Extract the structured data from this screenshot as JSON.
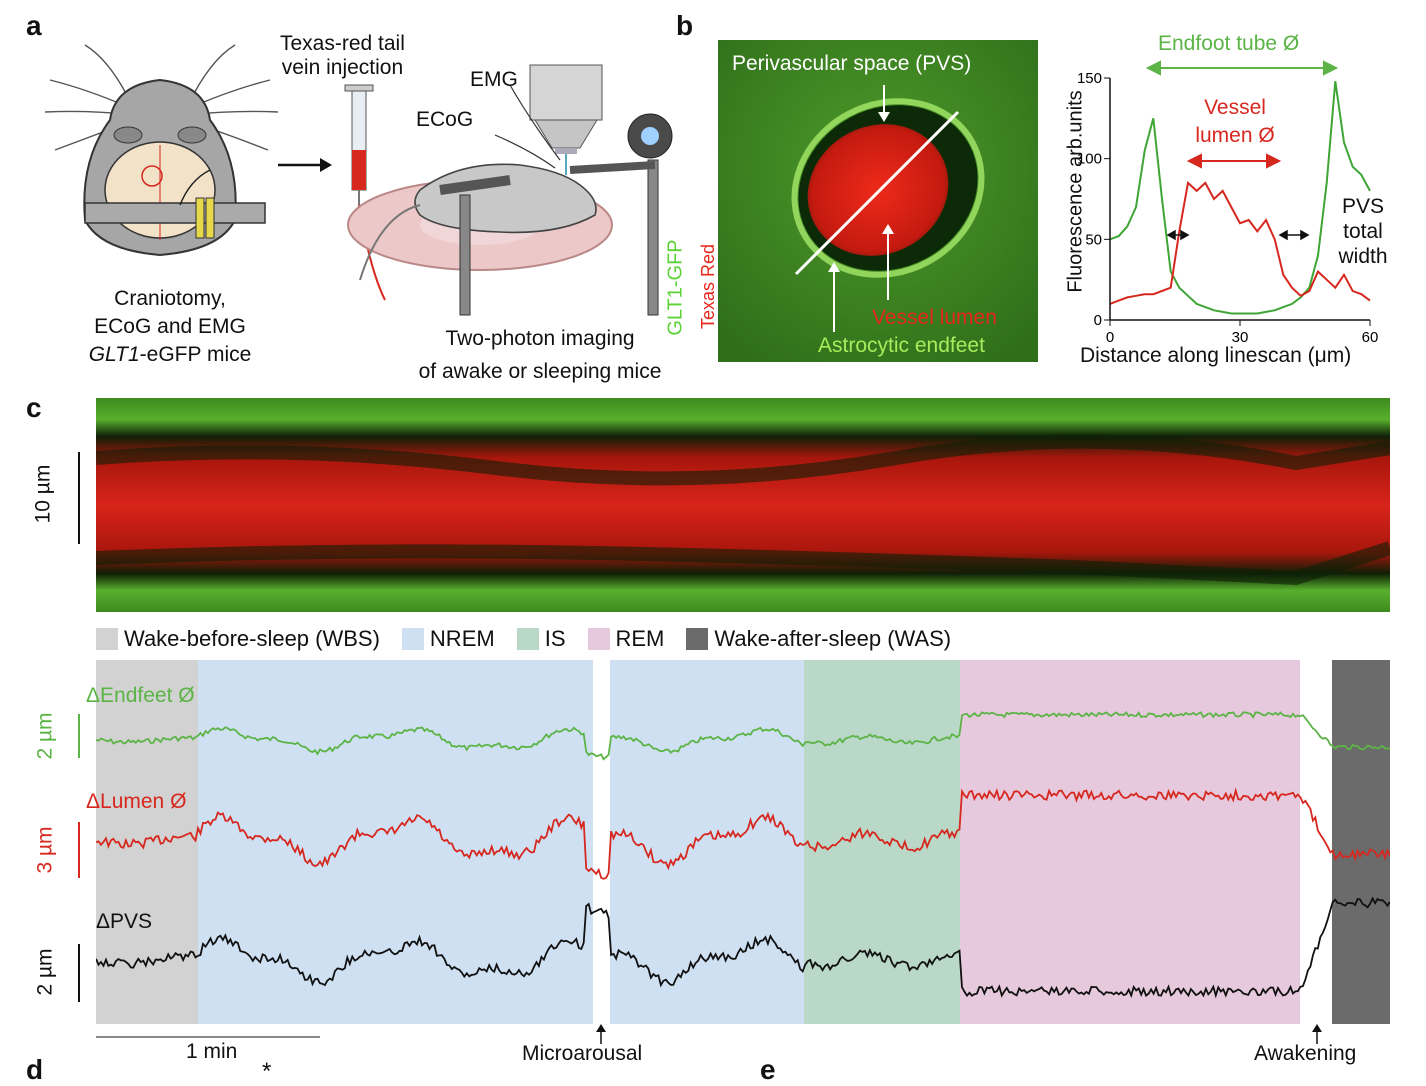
{
  "panels": {
    "a": "a",
    "b": "b",
    "c": "c",
    "d": "d",
    "e": "e"
  },
  "a": {
    "injection": [
      "Texas-red tail",
      "vein injection"
    ],
    "emg": "EMG",
    "ecog": "ECoG",
    "caption_left": [
      "Craniotomy,",
      "ECoG and EMG",
      "GLT1",
      "-eGFP mice"
    ],
    "caption_right": [
      "Two-photon imaging",
      "of awake or sleeping mice"
    ]
  },
  "b": {
    "pvs_label": "Perivascular space (PVS)",
    "lumen_label": "Vessel lumen",
    "endfeet_label": "Astrocytic endfeet",
    "channel_green": "GLT1-GFP",
    "channel_red": "Texas Red",
    "endfoot_tube": "Endfoot tube Ø",
    "vessel_lumen": [
      "Vessel",
      "lumen Ø"
    ],
    "pvs_total": [
      "PVS",
      "total",
      "width"
    ]
  },
  "chart_data": {
    "type": "line",
    "xlabel": "Distance along linescan (μm)",
    "ylabel": "Fluorescence arb.units",
    "xlim": [
      0,
      60
    ],
    "ylim": [
      0,
      150
    ],
    "xticks": [
      "0",
      "30",
      "60"
    ],
    "yticks": [
      "0",
      "50",
      "100",
      "150"
    ],
    "x": [
      0,
      2,
      4,
      6,
      8,
      10,
      12,
      14,
      16,
      18,
      20,
      22,
      24,
      26,
      28,
      30,
      32,
      34,
      36,
      38,
      40,
      42,
      44,
      46,
      48,
      50,
      52,
      54,
      56,
      58,
      60
    ],
    "series": [
      {
        "color": "#3fa535",
        "values": [
          50,
          52,
          58,
          70,
          105,
          125,
          75,
          30,
          20,
          15,
          10,
          8,
          6,
          5,
          4,
          4,
          4,
          4,
          5,
          6,
          8,
          10,
          14,
          20,
          40,
          85,
          148,
          110,
          95,
          90,
          80
        ]
      },
      {
        "color": "#d6281f",
        "values": [
          10,
          12,
          14,
          15,
          16,
          16,
          18,
          20,
          55,
          85,
          80,
          85,
          75,
          80,
          70,
          60,
          62,
          55,
          62,
          50,
          28,
          20,
          15,
          18,
          30,
          25,
          20,
          28,
          18,
          16,
          12
        ]
      }
    ]
  },
  "c": {
    "scale_kymo": "10 µm",
    "legend": [
      {
        "label": "Wake-before-sleep (WBS)",
        "color": "#d2d2d2"
      },
      {
        "label": "NREM",
        "color": "#cfe0f3"
      },
      {
        "label": "IS",
        "color": "#b9d8c8"
      },
      {
        "label": "REM",
        "color": "#e6c9dc"
      },
      {
        "label": "Wake-after-sleep (WAS)",
        "color": "#6b6b6b"
      }
    ],
    "trace_endfeet": "ΔEndfeet Ø",
    "trace_lumen": "ΔLumen Ø",
    "trace_pvs": "ΔPVS",
    "scale_endfeet": "2 µm",
    "scale_lumen": "3 µm",
    "scale_pvs": "2 µm",
    "time_scale": "1 min",
    "microarousal": "Microarousal",
    "awakening": "Awakening",
    "colors": {
      "endfeet": "#5cb446",
      "lumen": "#d6281f",
      "pvs": "#111111"
    }
  },
  "d": {
    "star": "*"
  }
}
